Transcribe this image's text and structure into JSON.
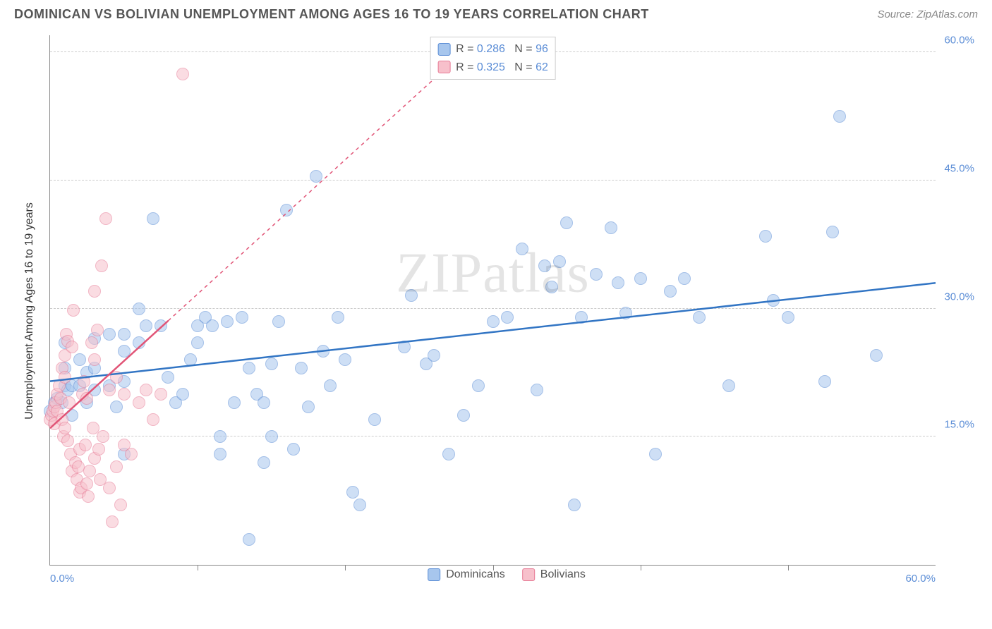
{
  "header": {
    "title": "DOMINICAN VS BOLIVIAN UNEMPLOYMENT AMONG AGES 16 TO 19 YEARS CORRELATION CHART",
    "source": "Source: ZipAtlas.com"
  },
  "watermark": "ZIPatlas",
  "chart": {
    "type": "scatter",
    "y_axis_label": "Unemployment Among Ages 16 to 19 years",
    "xlim": [
      0,
      60
    ],
    "ylim": [
      0,
      62
    ],
    "x_tick_step": 10,
    "y_ticks": [
      15,
      30,
      45,
      60
    ],
    "y_tick_labels": [
      "15.0%",
      "30.0%",
      "45.0%",
      "60.0%"
    ],
    "x_min_label": "0.0%",
    "x_max_label": "60.0%",
    "grid_color": "#cccccc",
    "background_color": "#ffffff",
    "marker_size": 18,
    "marker_opacity": 0.55,
    "series": [
      {
        "name": "Dominicans",
        "fill_color": "#a7c6ed",
        "stroke_color": "#5b8dd6",
        "stats": {
          "R": "0.286",
          "N": "96"
        },
        "trend": {
          "x1": 0,
          "y1": 21.5,
          "x2": 60,
          "y2": 33.0,
          "solid_until_x": 60,
          "color": "#3275c4",
          "width": 2.5
        },
        "points": [
          [
            0,
            18
          ],
          [
            0.3,
            19
          ],
          [
            0.5,
            19.5
          ],
          [
            0.8,
            19
          ],
          [
            1,
            21
          ],
          [
            1,
            23
          ],
          [
            1,
            26
          ],
          [
            1.2,
            20.5
          ],
          [
            1.5,
            21
          ],
          [
            1.5,
            17.5
          ],
          [
            2,
            24
          ],
          [
            2,
            21
          ],
          [
            2.5,
            22.5
          ],
          [
            2.5,
            19
          ],
          [
            3,
            23
          ],
          [
            3,
            20.5
          ],
          [
            3,
            26.5
          ],
          [
            4,
            27
          ],
          [
            4,
            21
          ],
          [
            4.5,
            18.5
          ],
          [
            5,
            27
          ],
          [
            5,
            25
          ],
          [
            5,
            21.5
          ],
          [
            5,
            13
          ],
          [
            6,
            26
          ],
          [
            6,
            30
          ],
          [
            6.5,
            28
          ],
          [
            7,
            40.5
          ],
          [
            7.5,
            28
          ],
          [
            8,
            22
          ],
          [
            8.5,
            19
          ],
          [
            9,
            20
          ],
          [
            9.5,
            24
          ],
          [
            10,
            28
          ],
          [
            10,
            26
          ],
          [
            10.5,
            29
          ],
          [
            11,
            28
          ],
          [
            11.5,
            15
          ],
          [
            11.5,
            13
          ],
          [
            12,
            28.5
          ],
          [
            12.5,
            19
          ],
          [
            13,
            29
          ],
          [
            13.5,
            23
          ],
          [
            13.5,
            3
          ],
          [
            14,
            20
          ],
          [
            14.5,
            19
          ],
          [
            14.5,
            12
          ],
          [
            15,
            23.5
          ],
          [
            15,
            15
          ],
          [
            15.5,
            28.5
          ],
          [
            16,
            41.5
          ],
          [
            16.5,
            13.5
          ],
          [
            17,
            23
          ],
          [
            17.5,
            18.5
          ],
          [
            18,
            45.5
          ],
          [
            18.5,
            25
          ],
          [
            19,
            21
          ],
          [
            19.5,
            29
          ],
          [
            20,
            24
          ],
          [
            20.5,
            8.5
          ],
          [
            21,
            7
          ],
          [
            22,
            17
          ],
          [
            24,
            25.5
          ],
          [
            24.5,
            31.5
          ],
          [
            25.5,
            23.5
          ],
          [
            26,
            24.5
          ],
          [
            27,
            13
          ],
          [
            28,
            17.5
          ],
          [
            29,
            21
          ],
          [
            30,
            28.5
          ],
          [
            31,
            29
          ],
          [
            32,
            37
          ],
          [
            33,
            20.5
          ],
          [
            33.5,
            35
          ],
          [
            34,
            32.5
          ],
          [
            34.5,
            35.5
          ],
          [
            35,
            40
          ],
          [
            35.5,
            7
          ],
          [
            36,
            29
          ],
          [
            37,
            34
          ],
          [
            38,
            39.5
          ],
          [
            38.5,
            33
          ],
          [
            39,
            29.5
          ],
          [
            40,
            33.5
          ],
          [
            41,
            13
          ],
          [
            42,
            32
          ],
          [
            43,
            33.5
          ],
          [
            44,
            29
          ],
          [
            46,
            21
          ],
          [
            48.5,
            38.5
          ],
          [
            49,
            31
          ],
          [
            50,
            29
          ],
          [
            52.5,
            21.5
          ],
          [
            53,
            39
          ],
          [
            53.5,
            52.5
          ],
          [
            56,
            24.5
          ]
        ]
      },
      {
        "name": "Bolivians",
        "fill_color": "#f7c0cb",
        "stroke_color": "#e77a95",
        "stats": {
          "R": "0.325",
          "N": "62"
        },
        "trend": {
          "x1": 0,
          "y1": 16,
          "x2": 28,
          "y2": 60,
          "solid_until_x": 8,
          "color": "#e15577",
          "width": 2.5
        },
        "points": [
          [
            0,
            17
          ],
          [
            0.1,
            17.5
          ],
          [
            0.2,
            18
          ],
          [
            0.3,
            18.5
          ],
          [
            0.3,
            16.5
          ],
          [
            0.4,
            19
          ],
          [
            0.5,
            18
          ],
          [
            0.5,
            20
          ],
          [
            0.6,
            21
          ],
          [
            0.7,
            19.5
          ],
          [
            0.8,
            23
          ],
          [
            0.8,
            17
          ],
          [
            0.9,
            15
          ],
          [
            1,
            16
          ],
          [
            1,
            22
          ],
          [
            1,
            24.5
          ],
          [
            1.1,
            27
          ],
          [
            1.2,
            26.2
          ],
          [
            1.2,
            14.5
          ],
          [
            1.3,
            19
          ],
          [
            1.4,
            13
          ],
          [
            1.5,
            25.5
          ],
          [
            1.5,
            11
          ],
          [
            1.6,
            29.8
          ],
          [
            1.7,
            12
          ],
          [
            1.8,
            10
          ],
          [
            1.9,
            11.5
          ],
          [
            2,
            13.5
          ],
          [
            2,
            8.5
          ],
          [
            2.1,
            9
          ],
          [
            2.2,
            20
          ],
          [
            2.3,
            21.5
          ],
          [
            2.4,
            14
          ],
          [
            2.5,
            19.5
          ],
          [
            2.5,
            9.5
          ],
          [
            2.6,
            8
          ],
          [
            2.7,
            11
          ],
          [
            2.8,
            26
          ],
          [
            2.9,
            16
          ],
          [
            3,
            12.5
          ],
          [
            3,
            24
          ],
          [
            3,
            32
          ],
          [
            3.2,
            27.5
          ],
          [
            3.3,
            13.5
          ],
          [
            3.4,
            10
          ],
          [
            3.5,
            35
          ],
          [
            3.6,
            15
          ],
          [
            3.8,
            40.5
          ],
          [
            4,
            20.5
          ],
          [
            4,
            9
          ],
          [
            4.2,
            5
          ],
          [
            4.5,
            11.5
          ],
          [
            4.5,
            22
          ],
          [
            4.8,
            7
          ],
          [
            5,
            14
          ],
          [
            5,
            20
          ],
          [
            5.5,
            13
          ],
          [
            6,
            19
          ],
          [
            6.5,
            20.5
          ],
          [
            7,
            17
          ],
          [
            7.5,
            20
          ],
          [
            9,
            57.5
          ]
        ]
      }
    ],
    "legend_bottom": [
      {
        "label": "Dominicans",
        "swatch": "blue"
      },
      {
        "label": "Bolivians",
        "swatch": "pink"
      }
    ]
  }
}
